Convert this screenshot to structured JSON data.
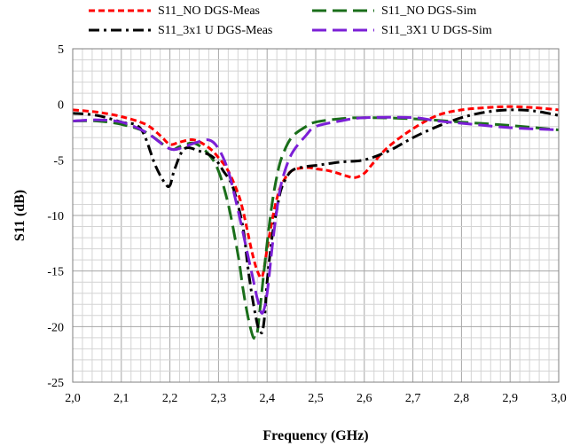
{
  "chart_data": {
    "type": "line",
    "title": "",
    "xlabel": "Frequency (GHz)",
    "ylabel": "S11 (dB)",
    "xlim": [
      2.0,
      3.0
    ],
    "ylim": [
      -25,
      5
    ],
    "x_ticks": [
      "2,0",
      "2,1",
      "2,2",
      "2,3",
      "2,4",
      "2,5",
      "2,6",
      "2,7",
      "2,8",
      "2,9",
      "3,0"
    ],
    "y_ticks": [
      "5",
      "0",
      "-5",
      "-10",
      "-15",
      "-20",
      "-25"
    ],
    "grid": true,
    "minor_grid": true,
    "legend_position": "top",
    "series": [
      {
        "name": "S11_NO DGS-Meas",
        "color": "#ff0000",
        "dash": "short-dash",
        "x": [
          2.0,
          2.05,
          2.1,
          2.15,
          2.18,
          2.2,
          2.22,
          2.25,
          2.28,
          2.3,
          2.32,
          2.34,
          2.35,
          2.36,
          2.37,
          2.38,
          2.39,
          2.4,
          2.41,
          2.42,
          2.43,
          2.45,
          2.48,
          2.5,
          2.53,
          2.56,
          2.58,
          2.6,
          2.62,
          2.65,
          2.7,
          2.75,
          2.8,
          2.85,
          2.9,
          2.95,
          3.0
        ],
        "y": [
          -0.5,
          -0.7,
          -1.1,
          -1.8,
          -2.8,
          -3.6,
          -3.4,
          -3.2,
          -3.9,
          -4.8,
          -6.0,
          -8.0,
          -9.5,
          -11.5,
          -13.5,
          -15.0,
          -15.5,
          -13.0,
          -10.5,
          -8.5,
          -7.2,
          -6.0,
          -5.7,
          -5.8,
          -6.0,
          -6.4,
          -6.6,
          -6.2,
          -5.2,
          -3.8,
          -2.2,
          -1.0,
          -0.5,
          -0.3,
          -0.2,
          -0.3,
          -0.5
        ]
      },
      {
        "name": "S11_NO DGS-Sim",
        "color": "#1a6e1a",
        "dash": "long-dash",
        "x": [
          2.0,
          2.05,
          2.1,
          2.15,
          2.2,
          2.22,
          2.25,
          2.28,
          2.3,
          2.32,
          2.34,
          2.35,
          2.36,
          2.37,
          2.375,
          2.38,
          2.39,
          2.4,
          2.41,
          2.42,
          2.43,
          2.45,
          2.48,
          2.5,
          2.55,
          2.6,
          2.7,
          2.8,
          2.9,
          3.0
        ],
        "y": [
          -1.5,
          -1.5,
          -1.8,
          -2.5,
          -4.0,
          -3.8,
          -3.5,
          -4.5,
          -6.0,
          -9.0,
          -13.5,
          -16.5,
          -19.0,
          -20.8,
          -21.0,
          -20.5,
          -16.5,
          -12.5,
          -9.0,
          -6.5,
          -4.8,
          -3.0,
          -2.0,
          -1.6,
          -1.3,
          -1.2,
          -1.3,
          -1.6,
          -1.9,
          -2.3
        ]
      },
      {
        "name": "S11_3x1 U DGS-Meas",
        "color": "#000000",
        "dash": "dash-dot",
        "x": [
          2.0,
          2.05,
          2.1,
          2.14,
          2.17,
          2.19,
          2.2,
          2.21,
          2.23,
          2.26,
          2.29,
          2.31,
          2.33,
          2.35,
          2.36,
          2.37,
          2.38,
          2.385,
          2.39,
          2.395,
          2.4,
          2.41,
          2.42,
          2.43,
          2.45,
          2.48,
          2.5,
          2.55,
          2.6,
          2.65,
          2.7,
          2.75,
          2.8,
          2.85,
          2.9,
          2.95,
          3.0
        ],
        "y": [
          -0.8,
          -1.0,
          -1.6,
          -2.2,
          -5.5,
          -7.1,
          -7.3,
          -5.8,
          -4.0,
          -4.2,
          -4.8,
          -6.0,
          -7.5,
          -11.0,
          -14.5,
          -17.5,
          -19.8,
          -20.3,
          -20.5,
          -19.0,
          -16.0,
          -12.0,
          -9.5,
          -7.5,
          -6.0,
          -5.6,
          -5.5,
          -5.2,
          -5.0,
          -4.2,
          -3.0,
          -2.0,
          -1.2,
          -0.7,
          -0.5,
          -0.6,
          -1.0
        ]
      },
      {
        "name": "S11_3X1 U DGS-Sim",
        "color": "#7b1fd6",
        "dash": "long-dash",
        "x": [
          2.0,
          2.05,
          2.1,
          2.15,
          2.2,
          2.23,
          2.25,
          2.28,
          2.3,
          2.32,
          2.34,
          2.36,
          2.37,
          2.38,
          2.39,
          2.4,
          2.41,
          2.42,
          2.43,
          2.45,
          2.48,
          2.5,
          2.55,
          2.6,
          2.7,
          2.75,
          2.8,
          2.9,
          3.0
        ],
        "y": [
          -1.5,
          -1.4,
          -1.6,
          -2.5,
          -4.0,
          -3.8,
          -3.5,
          -3.2,
          -4.0,
          -6.0,
          -9.5,
          -13.5,
          -15.5,
          -17.5,
          -18.8,
          -17.0,
          -13.0,
          -9.5,
          -7.0,
          -4.5,
          -2.8,
          -2.0,
          -1.5,
          -1.2,
          -1.2,
          -1.5,
          -1.7,
          -2.1,
          -2.3
        ]
      }
    ]
  }
}
